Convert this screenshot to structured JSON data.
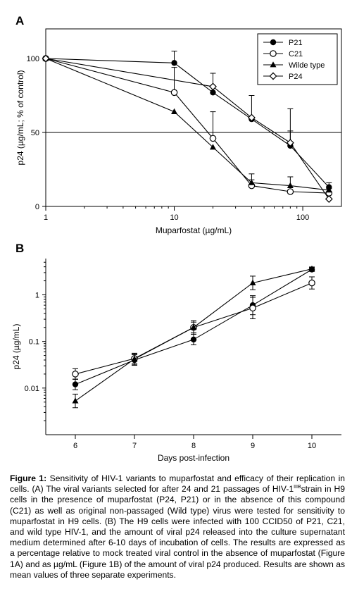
{
  "chart_data": [
    {
      "panel_label": "A",
      "type": "line",
      "x_scale": "log",
      "xlabel": "Muparfostat (µg/mL)",
      "ylabel": "p24 (µg/mL; % of control)",
      "xlim": [
        1,
        200
      ],
      "ylim": [
        0,
        120
      ],
      "x_ticks": [
        1,
        10,
        100
      ],
      "y_ticks": [
        0,
        50,
        100
      ],
      "reference_line_y": 50,
      "legend_position": "top-right",
      "series": [
        {
          "name": "P21",
          "marker": "filled-circle",
          "x": [
            1,
            10,
            20,
            40,
            80,
            160
          ],
          "y": [
            100,
            97,
            77,
            59,
            41,
            13
          ],
          "err": [
            0,
            8,
            0,
            16,
            10,
            3
          ]
        },
        {
          "name": "C21",
          "marker": "open-circle",
          "x": [
            1,
            10,
            20,
            40,
            80,
            160
          ],
          "y": [
            100,
            77,
            46,
            14,
            10,
            9
          ],
          "err": [
            0,
            17,
            18,
            4,
            0,
            3
          ]
        },
        {
          "name": "Wilde type",
          "marker": "filled-triangle",
          "x": [
            1,
            10,
            20,
            40,
            80,
            160
          ],
          "y": [
            100,
            64,
            40,
            16,
            14,
            11
          ],
          "err": [
            0,
            0,
            0,
            6,
            6,
            0
          ]
        },
        {
          "name": "P24",
          "marker": "open-diamond",
          "x": [
            1,
            20,
            40,
            80,
            160
          ],
          "y": [
            100,
            81,
            60,
            43,
            5
          ],
          "err": [
            0,
            9,
            0,
            23,
            0
          ]
        }
      ]
    },
    {
      "panel_label": "B",
      "type": "line",
      "y_scale": "log",
      "xlabel": "Days post-infection",
      "ylabel": "p24 (µg/mL)",
      "xlim": [
        5.5,
        10.5
      ],
      "ylim": [
        0.001,
        6
      ],
      "x_ticks": [
        6,
        7,
        8,
        9,
        10
      ],
      "y_ticks": [
        0.01,
        0.1,
        1
      ],
      "y_tick_labels": [
        "0.01",
        "0.1",
        "1"
      ],
      "series": [
        {
          "marker": "filled-circle",
          "x": [
            6,
            7,
            8,
            9,
            10
          ],
          "y": [
            0.012,
            0.04,
            0.11,
            0.6,
            3.5
          ],
          "err_factor": [
            1.3,
            1.3,
            1.3,
            1.6,
            1.1
          ]
        },
        {
          "marker": "open-circle",
          "x": [
            6,
            7,
            8,
            9,
            10
          ],
          "y": [
            0.02,
            0.043,
            0.2,
            0.52,
            1.8
          ],
          "err_factor": [
            1.3,
            1.3,
            1.4,
            1.7,
            1.35
          ]
        },
        {
          "marker": "filled-triangle",
          "x": [
            6,
            7,
            8,
            9,
            10
          ],
          "y": [
            0.0053,
            0.042,
            0.2,
            1.8,
            3.6
          ],
          "err_factor": [
            1.4,
            1.3,
            1.3,
            1.4,
            1.1
          ]
        }
      ]
    }
  ],
  "caption": {
    "label": "Figure 1:",
    "text_1": " Sensitivity of HIV-1 variants to muparfostat and efficacy of their replication in cells. (A) The viral variants selected for after 24 and 21 passages of HIV-1",
    "superscript": "IIIB",
    "text_2": "strain in H9 cells in the presence of muparfostat (P24, P21) or in the absence of this compound (C21) as well as original non-passaged (Wild type) virus were tested for sensitivity to muparfostat in H9 cells. (B) The H9 cells were infected with 100 CCID50 of P21, C21, and wild type HIV-1, and the amount of viral p24 released into the culture supernatant medium determined after 6-10 days of incubation of cells. The results are expressed as a percentage relative to mock treated viral control in the absence of muparfostat (Figure 1A) and as µg/mL (Figure 1B) of the amount of viral p24 produced. Results are shown as mean values of three separate experiments."
  }
}
